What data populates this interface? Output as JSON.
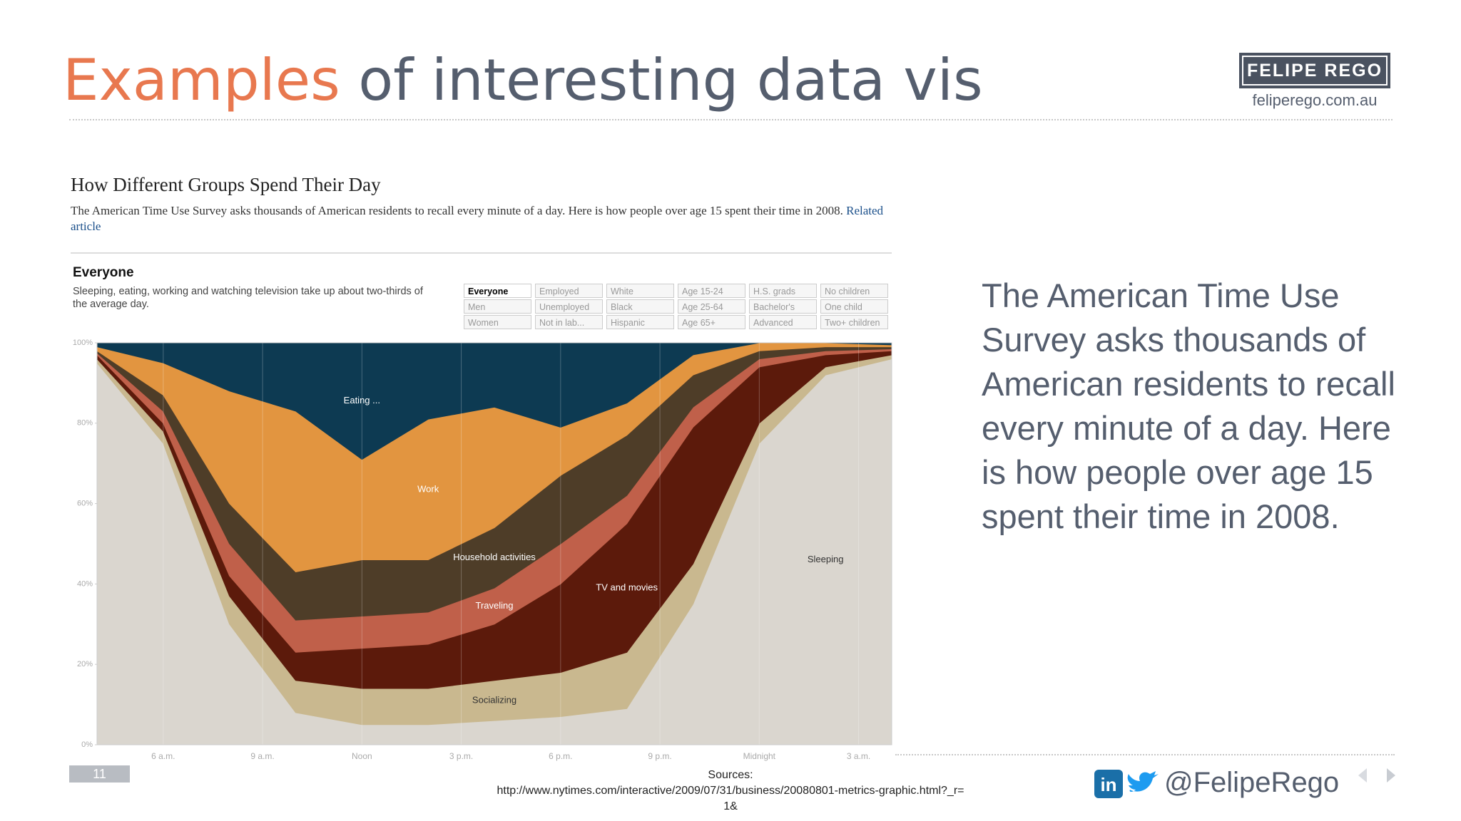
{
  "header": {
    "title_highlight": "Examples",
    "title_rest": "of interesting data vis",
    "logo": "FELIPE REGO",
    "website": "feliperego.com.au"
  },
  "chart_header": {
    "title": "How Different Groups Spend Their Day",
    "subtitle": "The American Time Use Survey asks thousands of American residents to recall every minute of a day. Here is how people over age 15 spent their time in 2008.",
    "link": "Related article",
    "group": "Everyone",
    "description": "Sleeping, eating, working and watching television take up about two-thirds of the average day."
  },
  "filters": [
    [
      "Everyone",
      "Men",
      "Women"
    ],
    [
      "Employed",
      "Unemployed",
      "Not in lab..."
    ],
    [
      "White",
      "Black",
      "Hispanic"
    ],
    [
      "Age 15-24",
      "Age 25-64",
      "Age 65+"
    ],
    [
      "H.S. grads",
      "Bachelor's",
      "Advanced"
    ],
    [
      "No children",
      "One child",
      "Two+ children"
    ]
  ],
  "chart_data": {
    "type": "stacked_area",
    "x": [
      4,
      6,
      8,
      10,
      12,
      14,
      16,
      18,
      20,
      22,
      24,
      26,
      28
    ],
    "xlim": [
      4,
      28
    ],
    "xticks": [
      {
        "value": 6,
        "label": "6 a.m."
      },
      {
        "value": 9,
        "label": "9 a.m."
      },
      {
        "value": 12,
        "label": "Noon"
      },
      {
        "value": 15,
        "label": "3 p.m."
      },
      {
        "value": 18,
        "label": "6 p.m."
      },
      {
        "value": 21,
        "label": "9 p.m."
      },
      {
        "value": 24,
        "label": "Midnight"
      },
      {
        "value": 27,
        "label": "3 a.m."
      }
    ],
    "ylim": [
      0,
      100
    ],
    "yticks": [
      {
        "value": 0,
        "label": "0%"
      },
      {
        "value": 20,
        "label": "20%"
      },
      {
        "value": 40,
        "label": "40%"
      },
      {
        "value": 60,
        "label": "60%"
      },
      {
        "value": 80,
        "label": "80%"
      },
      {
        "value": 100,
        "label": "100%"
      }
    ],
    "series": [
      {
        "name": "Sleeping",
        "color": "#dad6cf",
        "values": [
          95,
          75,
          30,
          8,
          5,
          5,
          6,
          7,
          9,
          35,
          75,
          92,
          96
        ]
      },
      {
        "name": "Socializing",
        "color": "#c9b88f",
        "values": [
          1,
          3,
          7,
          8,
          9,
          9,
          10,
          11,
          14,
          10,
          5,
          2,
          1
        ]
      },
      {
        "name": "TV and movies",
        "color": "#5c1a0b",
        "values": [
          1,
          2,
          5,
          7,
          10,
          11,
          14,
          22,
          32,
          34,
          14,
          3,
          1
        ]
      },
      {
        "name": "Traveling",
        "color": "#c0604a",
        "values": [
          0.5,
          3,
          8,
          8,
          8,
          8,
          9,
          10,
          7,
          5,
          2,
          1,
          0.5
        ]
      },
      {
        "name": "Household activities",
        "color": "#4e3d28",
        "values": [
          0.5,
          4,
          10,
          12,
          14,
          13,
          15,
          17,
          15,
          8,
          2,
          1,
          0.5
        ]
      },
      {
        "name": "Work",
        "color": "#e29540",
        "values": [
          1,
          8,
          28,
          40,
          25,
          35,
          30,
          12,
          8,
          5,
          2,
          1,
          0.5
        ]
      },
      {
        "name": "Eating ...",
        "color": "#0d3a52",
        "values": [
          1,
          5,
          12,
          17,
          29,
          19,
          16,
          21,
          15,
          3,
          0,
          0,
          0.5
        ]
      }
    ]
  },
  "body_text": "The American Time Use Survey asks thousands of American residents to recall every minute of a day. Here is how people over age 15 spent their time in 2008.",
  "sources": [
    "Sources:",
    "http://www.nytimes.com/interactive/2009/07/31/business/20080801-metrics-graphic.html?_r=",
    "1&"
  ],
  "footer": {
    "page": "11",
    "handle": "@FelipeRego"
  }
}
